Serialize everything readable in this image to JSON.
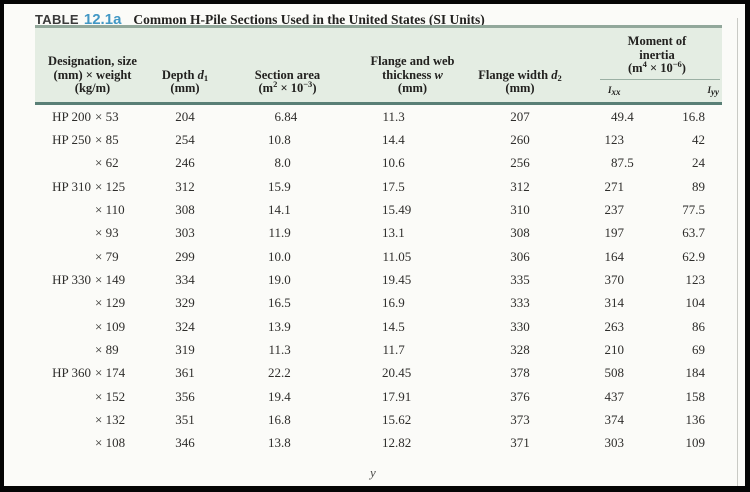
{
  "title": {
    "label": "TABLE",
    "number": "12.1a",
    "caption": "Common H-Pile Sections Used in the United States (SI Units)"
  },
  "header": {
    "designation": {
      "line1": "Designation, size",
      "line2": "(mm) × weight",
      "line3": "(kg/m)"
    },
    "depth": {
      "label": "Depth ",
      "var": "d",
      "sub": "1",
      "unit": "(mm)"
    },
    "area": {
      "line1": "Section area",
      "unit_pre": "(m",
      "unit_sup1": "2",
      "unit_mid": " × 10",
      "unit_sup2": "−3",
      "unit_post": ")"
    },
    "thickness": {
      "line1": "Flange and web",
      "line2": "thickness ",
      "var": "w",
      "unit": "(mm)"
    },
    "flange_width": {
      "label": "Flange width ",
      "var": "d",
      "sub": "2",
      "unit": "(mm)"
    },
    "moment": {
      "line1": "Moment of",
      "line2": "inertia",
      "unit_pre": "(m",
      "unit_sup1": "4",
      "unit_mid": " × 10",
      "unit_sup2": "−6",
      "unit_post": ")",
      "ixx_sym": "I",
      "ixx_sub": "xx",
      "iyy_sym": "I",
      "iyy_sub": "yy"
    }
  },
  "rows": [
    {
      "group": "HP 200",
      "weight": "× 53",
      "depth": "204",
      "area": "6.84",
      "thickness": "11.3",
      "flange_width": "207",
      "ixx": "49.4",
      "iyy": "16.8"
    },
    {
      "group": "HP 250",
      "weight": "× 85",
      "depth": "254",
      "area": "10.8",
      "thickness": "14.4",
      "flange_width": "260",
      "ixx": "123",
      "iyy": "42"
    },
    {
      "group": "",
      "weight": "× 62",
      "depth": "246",
      "area": "8.0",
      "thickness": "10.6",
      "flange_width": "256",
      "ixx": "87.5",
      "iyy": "24"
    },
    {
      "group": "HP 310",
      "weight": "× 125",
      "depth": "312",
      "area": "15.9",
      "thickness": "17.5",
      "flange_width": "312",
      "ixx": "271",
      "iyy": "89"
    },
    {
      "group": "",
      "weight": "× 110",
      "depth": "308",
      "area": "14.1",
      "thickness": "15.49",
      "flange_width": "310",
      "ixx": "237",
      "iyy": "77.5"
    },
    {
      "group": "",
      "weight": "× 93",
      "depth": "303",
      "area": "11.9",
      "thickness": "13.1",
      "flange_width": "308",
      "ixx": "197",
      "iyy": "63.7"
    },
    {
      "group": "",
      "weight": "× 79",
      "depth": "299",
      "area": "10.0",
      "thickness": "11.05",
      "flange_width": "306",
      "ixx": "164",
      "iyy": "62.9"
    },
    {
      "group": "HP 330",
      "weight": "× 149",
      "depth": "334",
      "area": "19.0",
      "thickness": "19.45",
      "flange_width": "335",
      "ixx": "370",
      "iyy": "123"
    },
    {
      "group": "",
      "weight": "× 129",
      "depth": "329",
      "area": "16.5",
      "thickness": "16.9",
      "flange_width": "333",
      "ixx": "314",
      "iyy": "104"
    },
    {
      "group": "",
      "weight": "× 109",
      "depth": "324",
      "area": "13.9",
      "thickness": "14.5",
      "flange_width": "330",
      "ixx": "263",
      "iyy": "86"
    },
    {
      "group": "",
      "weight": "× 89",
      "depth": "319",
      "area": "11.3",
      "thickness": "11.7",
      "flange_width": "328",
      "ixx": "210",
      "iyy": "69"
    },
    {
      "group": "HP 360",
      "weight": "× 174",
      "depth": "361",
      "area": "22.2",
      "thickness": "20.45",
      "flange_width": "378",
      "ixx": "508",
      "iyy": "184"
    },
    {
      "group": "",
      "weight": "× 152",
      "depth": "356",
      "area": "19.4",
      "thickness": "17.91",
      "flange_width": "376",
      "ixx": "437",
      "iyy": "158"
    },
    {
      "group": "",
      "weight": "× 132",
      "depth": "351",
      "area": "16.8",
      "thickness": "15.62",
      "flange_width": "373",
      "ixx": "374",
      "iyy": "136"
    },
    {
      "group": "",
      "weight": "× 108",
      "depth": "346",
      "area": "13.8",
      "thickness": "12.82",
      "flange_width": "371",
      "ixx": "303",
      "iyy": "109"
    }
  ],
  "figure_label": "y",
  "colors": {
    "header_band": "#e4ede3",
    "rule_top": "#92a89b",
    "rule_bottom": "#597f76",
    "accent_number": "#4298c5",
    "frame": "#050505"
  }
}
